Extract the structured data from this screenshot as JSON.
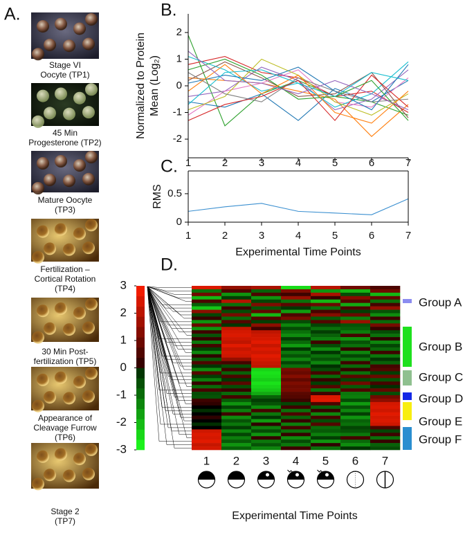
{
  "panels": [
    "A.",
    "B.",
    "C.",
    "D."
  ],
  "panel_a": {
    "captions": [
      [
        "Stage VI",
        "Oocyte (TP1)"
      ],
      [
        "45 Min",
        "Progesterone (TP2)"
      ],
      [
        "Mature Oocyte",
        "(TP3)"
      ],
      [
        "Fertilization –",
        "Cortical Rotation",
        "(TP4)"
      ],
      [
        "30 Min Post-",
        "fertilization (TP5)"
      ],
      [
        "Appearance of",
        "Cleavage Furrow",
        "(TP6)"
      ],
      [
        "Stage 2",
        "(TP7)"
      ]
    ]
  },
  "chart_data": [
    {
      "type": "line",
      "y_label": [
        "Normalized to Protein",
        "Mean (Log₂)"
      ],
      "x": [
        1,
        2,
        3,
        4,
        5,
        6,
        7
      ],
      "xlim": [
        1,
        7
      ],
      "xticks": [
        1,
        2,
        3,
        4,
        5,
        6,
        7
      ],
      "ylim": [
        -2.7,
        2.7
      ],
      "yticks": [
        -2,
        -1,
        0,
        1,
        2
      ],
      "series": [
        {
          "color": "#2ca02c",
          "values": [
            1.9,
            -1.5,
            -0.3,
            0.2,
            -0.4,
            -0.6,
            -1.1
          ]
        },
        {
          "color": "#1f77b4",
          "values": [
            -0.6,
            -0.8,
            -0.3,
            -1.3,
            -0.1,
            -0.6,
            0.2
          ]
        },
        {
          "color": "#ff7f0e",
          "values": [
            0.3,
            0.2,
            0.1,
            -0.2,
            -0.5,
            -1.9,
            -0.7
          ]
        },
        {
          "color": "#d62728",
          "values": [
            0.8,
            1.1,
            0.5,
            0.3,
            -0.4,
            -0.2,
            -1
          ]
        },
        {
          "color": "#9467bd",
          "values": [
            -0.4,
            -0.2,
            0.7,
            0.2,
            -0.9,
            -0.5,
            0.6
          ]
        },
        {
          "color": "#8c564b",
          "values": [
            0.2,
            0.9,
            0.3,
            -0.4,
            -0.3,
            0.5,
            -1.2
          ]
        },
        {
          "color": "#e377c2",
          "values": [
            -1.1,
            -0.2,
            0.1,
            0.6,
            -0.6,
            -0.8,
            0.3
          ]
        },
        {
          "color": "#17becf",
          "values": [
            1.1,
            0.6,
            -0.2,
            0.1,
            -0.8,
            -0.3,
            0.9
          ]
        },
        {
          "color": "#bcbd22",
          "values": [
            -0.9,
            -0.4,
            1,
            0.4,
            -0.6,
            -1.1,
            -0.3
          ]
        },
        {
          "color": "#7f7f7f",
          "values": [
            0.5,
            -0.3,
            -0.6,
            0.3,
            -0.2,
            -0.6,
            -0.5
          ]
        },
        {
          "color": "#d62728",
          "values": [
            -1.3,
            -0.7,
            -0.4,
            0.2,
            -1.3,
            0.4,
            -0.8
          ]
        },
        {
          "color": "#1f77b4",
          "values": [
            0.1,
            0.4,
            0.2,
            0.7,
            -0.2,
            -0.9,
            0.8
          ]
        },
        {
          "color": "#2ca02c",
          "values": [
            0.6,
            1,
            0.4,
            -0.5,
            -0.4,
            0.2,
            -1.3
          ]
        },
        {
          "color": "#ff7f0e",
          "values": [
            -0.2,
            0.8,
            -0.3,
            0.4,
            -1,
            -1.4,
            -0.2
          ]
        },
        {
          "color": "#9467bd",
          "values": [
            1.3,
            0.2,
            0.1,
            -0.3,
            0.2,
            -0.3,
            -0.9
          ]
        },
        {
          "color": "#17becf",
          "values": [
            -0.7,
            0.5,
            0.6,
            0.1,
            -0.4,
            0.5,
            0.2
          ]
        }
      ]
    },
    {
      "type": "line",
      "y_label": "RMS",
      "x_label": "Experimental Time Points",
      "x": [
        1,
        2,
        3,
        4,
        5,
        6,
        7
      ],
      "xlim": [
        1,
        7
      ],
      "xticks": [
        1,
        2,
        3,
        4,
        5,
        6,
        7
      ],
      "ylim": [
        0,
        0.9
      ],
      "yticks": [
        0,
        0.5
      ],
      "box": true,
      "series": [
        {
          "color": "#3a8fd0",
          "values": [
            0.19,
            0.27,
            0.33,
            0.19,
            0.16,
            0.13,
            0.41
          ]
        }
      ]
    },
    {
      "type": "heatmap",
      "x_label": "Experimental Time Points",
      "categories": [
        "1",
        "2",
        "3",
        "4",
        "5",
        "6",
        "7"
      ],
      "colorbar": {
        "lim": [
          -3,
          3
        ],
        "ticks": [
          3,
          2,
          1,
          0,
          -1,
          -2,
          -3
        ]
      },
      "groups": [
        {
          "label": "Group A",
          "color": "#8c8cf0"
        },
        {
          "label": "Group B",
          "color": "#1ee01e"
        },
        {
          "label": "Group C",
          "color": "#8fc08f"
        },
        {
          "label": "Group D",
          "color": "#1428e6"
        },
        {
          "label": "Group E",
          "color": "#f8ee10"
        },
        {
          "label": "Group F",
          "color": "#2a8ed0"
        }
      ],
      "values": [
        [
          2.5,
          1.5,
          1.8,
          -2.5,
          2,
          1,
          0.5
        ],
        [
          -1,
          0.5,
          -0.8,
          1.2,
          -1.5,
          -2,
          1
        ],
        [
          1,
          -1.5,
          0.5,
          0.3,
          1.8,
          -0.5,
          -2
        ],
        [
          -2,
          -0.3,
          -1.5,
          1.5,
          0.2,
          1.3,
          0.8
        ],
        [
          0.5,
          2,
          -0.4,
          -1,
          -2,
          0.6,
          -1
        ],
        [
          -0.8,
          -1,
          1.2,
          0.7,
          0.9,
          -1.8,
          0.4
        ],
        [
          -2.2,
          0.3,
          -0.6,
          -0.2,
          -1,
          0.5,
          1.5
        ],
        [
          1.4,
          -0.5,
          0.8,
          -1.6,
          0.4,
          -0.3,
          -0.6
        ],
        [
          -0.4,
          1.1,
          -2,
          0.5,
          1.3,
          0.9,
          -1.4
        ],
        [
          0.2,
          -0.9,
          0.6,
          1.1,
          -0.7,
          -1.2,
          0.3
        ],
        [
          -1.5,
          0.6,
          -0.3,
          -0.5,
          0.6,
          1.6,
          -0.9
        ],
        [
          0.9,
          -0.2,
          1.4,
          -1.3,
          -0.4,
          -0.6,
          1.1
        ],
        [
          -1.5,
          2.2,
          0.3,
          -0.5,
          -1,
          -0.8,
          0.2
        ],
        [
          0.3,
          2.4,
          2.1,
          -1,
          -0.3,
          -1.2,
          -0.5
        ],
        [
          -0.6,
          2.5,
          2.3,
          -1.4,
          -0.8,
          0.4,
          -1
        ],
        [
          0.2,
          2.3,
          2.4,
          -0.3,
          -1.2,
          -1.5,
          0.1
        ],
        [
          -1.1,
          2.1,
          2.6,
          -0.9,
          0.3,
          -0.6,
          -1.3
        ],
        [
          0.4,
          2.6,
          2.2,
          -1.6,
          -0.5,
          -1,
          -0.4
        ],
        [
          -0.3,
          2.2,
          2.5,
          -0.2,
          -1.4,
          0.2,
          -0.9
        ],
        [
          -1.3,
          2.4,
          2.3,
          -1.1,
          -0.2,
          -1.3,
          0.3
        ],
        [
          0.1,
          2.3,
          2.6,
          -0.6,
          -1,
          -0.4,
          -1.1
        ],
        [
          -0.7,
          1.5,
          2.4,
          -1.3,
          -0.6,
          -1.1,
          -0.2
        ],
        [
          0.5,
          0.4,
          2.2,
          -0.4,
          -1.3,
          0.3,
          -0.8
        ],
        [
          -0.2,
          -0.5,
          2.1,
          -1,
          -0.1,
          -0.9,
          0.4
        ],
        [
          -1.4,
          0.3,
          -2.4,
          1.1,
          -0.5,
          0.2,
          0.6
        ],
        [
          0.6,
          -0.8,
          -2.6,
          0.9,
          0.4,
          -1,
          -0.3
        ],
        [
          -0.3,
          0.5,
          -2.5,
          1.3,
          -0.9,
          0.7,
          0.9
        ],
        [
          -1.2,
          -0.2,
          -2.3,
          0.8,
          0.2,
          -0.4,
          -0.6
        ],
        [
          0.2,
          0.7,
          -2.6,
          1.2,
          -0.3,
          1,
          0.4
        ],
        [
          -0.9,
          -0.5,
          -2.4,
          1,
          0.6,
          -0.7,
          -0.1
        ],
        [
          0.4,
          0.2,
          -2.2,
          1.1,
          -1,
          0.5,
          0.8
        ],
        [
          -0.5,
          -0.9,
          -1.8,
          0.7,
          0.3,
          -1.1,
          -0.5
        ],
        [
          -0.6,
          0.4,
          -0.8,
          0.6,
          2.5,
          -1.2,
          1
        ],
        [
          0.3,
          -0.7,
          -0.3,
          0.3,
          2.6,
          -0.5,
          1.4
        ],
        [
          0.1,
          -1.5,
          -0.6,
          -0.4,
          0.5,
          -1.6,
          2.4
        ],
        [
          0,
          -0.4,
          -1.4,
          0.3,
          -0.8,
          -0.6,
          2.5
        ],
        [
          -0.1,
          -1.2,
          0.4,
          -1,
          0.2,
          -1.3,
          2.3
        ],
        [
          0,
          0.3,
          -1.1,
          0.5,
          -1.3,
          -0.3,
          2.6
        ],
        [
          0.1,
          -1.4,
          -0.2,
          -0.8,
          0.4,
          -1.5,
          2.4
        ],
        [
          0,
          -0.6,
          -1.6,
          0.2,
          -0.5,
          -0.8,
          2.5
        ],
        [
          -0.1,
          -1.1,
          0.1,
          -1.2,
          0.6,
          -1,
          2.3
        ],
        [
          0,
          -0.3,
          -1.2,
          0.4,
          -0.9,
          -0.4,
          0.5
        ],
        [
          2.3,
          -1.3,
          -0.5,
          -1,
          -0.7,
          -0.6,
          -0.4
        ],
        [
          2.5,
          -0.4,
          -1.5,
          0.2,
          -1.2,
          -1.1,
          0.3
        ],
        [
          2.4,
          -1.2,
          0.2,
          -1.4,
          -0.3,
          0.4,
          -1
        ],
        [
          2.6,
          -0.7,
          -1.1,
          -0.5,
          -1.5,
          -0.9,
          0.2
        ],
        [
          2.2,
          -1.5,
          -0.6,
          -1.1,
          0.1,
          -1.4,
          -0.8
        ],
        [
          2.4,
          -0.8,
          -1.3,
          0.3,
          -1,
          -0.2,
          -0.5
        ]
      ]
    }
  ]
}
